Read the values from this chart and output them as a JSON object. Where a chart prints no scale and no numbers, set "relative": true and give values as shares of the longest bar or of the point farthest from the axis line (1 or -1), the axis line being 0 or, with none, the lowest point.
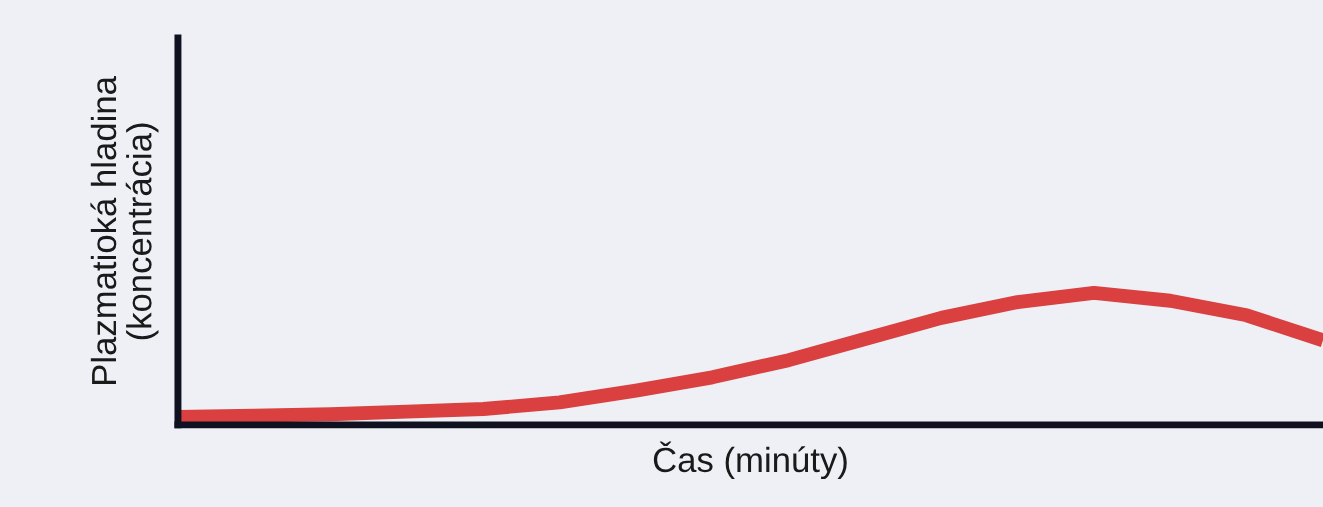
{
  "chart_data": {
    "type": "line",
    "xlabel": "Čas (minúty)",
    "ylabel": "Plazmatioká hladina\n(koncentrácia)",
    "relative": true,
    "tick_labels": false,
    "categories": [
      null,
      null,
      null,
      null,
      null,
      null,
      null,
      null,
      null,
      null,
      null,
      null,
      null,
      null,
      null,
      null
    ],
    "series": [
      {
        "color": "#d9403f",
        "values": [
          0.06,
          0.07,
          0.08,
          0.1,
          0.12,
          0.17,
          0.26,
          0.36,
          0.49,
          0.65,
          0.81,
          0.93,
          1,
          0.94,
          0.83,
          0.64
        ]
      }
    ]
  }
}
